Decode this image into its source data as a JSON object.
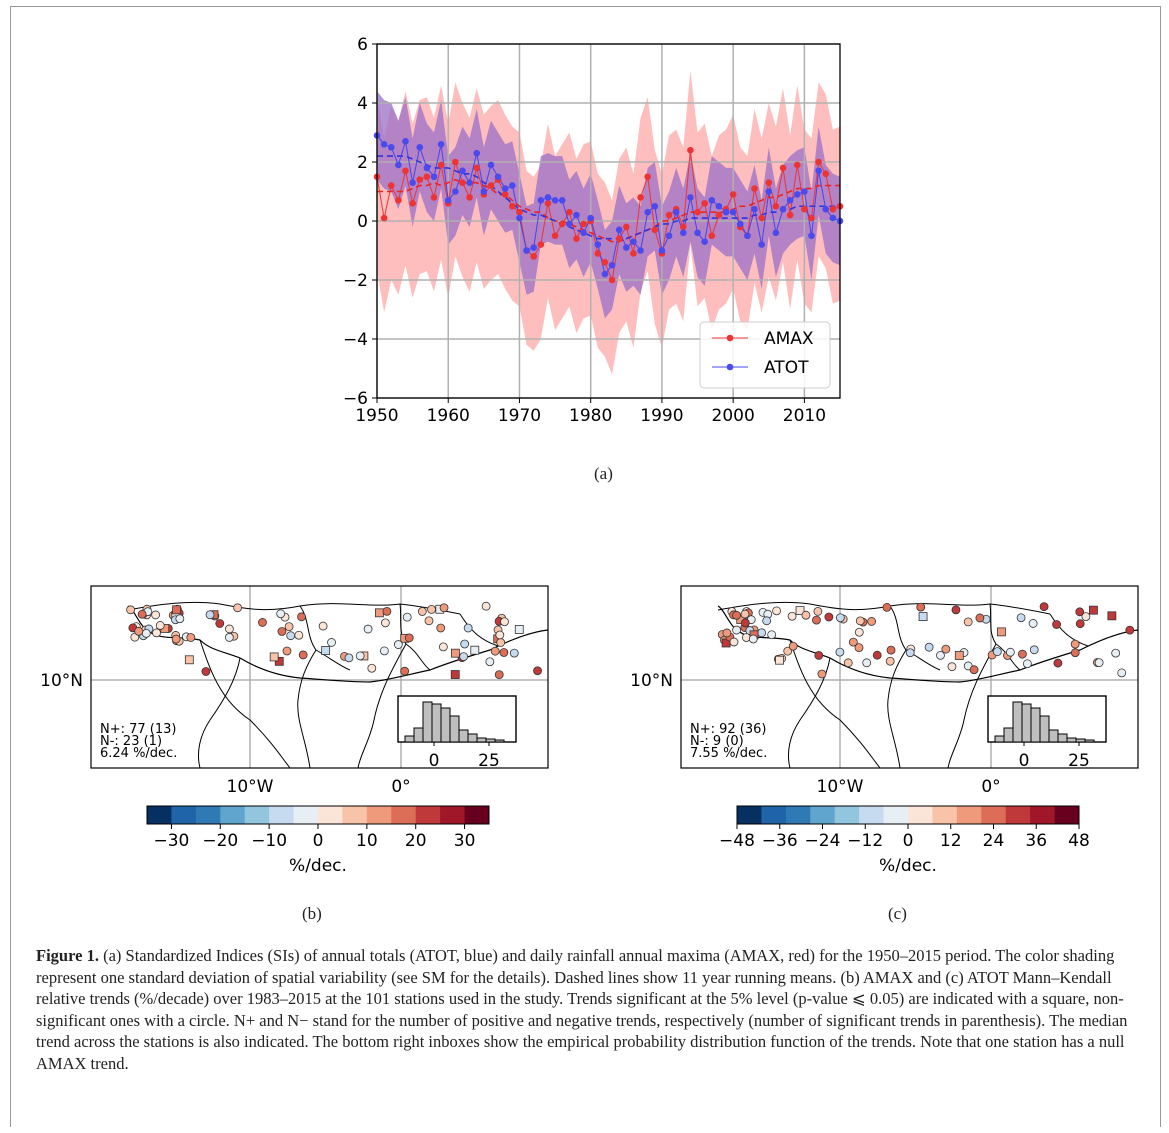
{
  "panels": {
    "a": "(a)",
    "b": "(b)",
    "c": "(c)"
  },
  "chart_data": [
    {
      "type": "line",
      "x": [
        1950,
        1951,
        1952,
        1953,
        1954,
        1955,
        1956,
        1957,
        1958,
        1959,
        1960,
        1961,
        1962,
        1963,
        1964,
        1965,
        1966,
        1967,
        1968,
        1969,
        1970,
        1971,
        1972,
        1973,
        1974,
        1975,
        1976,
        1977,
        1978,
        1979,
        1980,
        1981,
        1982,
        1983,
        1984,
        1985,
        1986,
        1987,
        1988,
        1989,
        1990,
        1991,
        1992,
        1993,
        1994,
        1995,
        1996,
        1997,
        1998,
        1999,
        2000,
        2001,
        2002,
        2003,
        2004,
        2005,
        2006,
        2007,
        2008,
        2009,
        2010,
        2011,
        2012,
        2013,
        2014,
        2015
      ],
      "series": [
        {
          "name": "AMAX",
          "color": "#ee3333",
          "values": [
            1.5,
            0.1,
            1.2,
            0.7,
            1.7,
            0.6,
            1.4,
            1.5,
            0.8,
            1.9,
            0.6,
            2.0,
            1.3,
            0.8,
            1.8,
            0.9,
            1.2,
            1.4,
            0.9,
            0.5,
            0.3,
            -1.0,
            -1.2,
            -0.8,
            0.6,
            -0.5,
            -0.1,
            0.3,
            -0.6,
            -0.1,
            0.0,
            -1.1,
            -1.4,
            -2.0,
            -0.6,
            -0.2,
            -1.1,
            0.8,
            1.5,
            -0.3,
            -1.1,
            0.2,
            0.4,
            -0.2,
            2.4,
            0.3,
            0.6,
            -0.5,
            0.2,
            0.4,
            0.9,
            -0.2,
            -0.5,
            1.1,
            0.1,
            1.3,
            0.5,
            1.8,
            0.2,
            1.9,
            0.4,
            0.1,
            2.0,
            1.6,
            0.4,
            0.5
          ]
        },
        {
          "name": "ATOT",
          "color": "#4444ee",
          "values": [
            2.9,
            2.6,
            2.5,
            1.9,
            2.7,
            1.3,
            2.5,
            1.8,
            1.5,
            2.6,
            0.7,
            1.0,
            1.7,
            1.3,
            2.3,
            1.0,
            1.9,
            1.5,
            1.1,
            1.2,
            0.1,
            -1.0,
            -0.9,
            0.7,
            0.8,
            0.7,
            0.7,
            -0.1,
            0.2,
            -0.4,
            0.1,
            -0.8,
            -1.8,
            -1.5,
            -0.3,
            -0.9,
            -0.7,
            -1.0,
            0.3,
            0.5,
            -1.0,
            -0.5,
            0.3,
            -0.4,
            0.8,
            -0.4,
            -0.7,
            0.7,
            0.5,
            0.3,
            0.3,
            -0.1,
            -0.5,
            0.4,
            -0.8,
            1.0,
            -0.4,
            0.4,
            0.7,
            0.9,
            1.0,
            -0.5,
            1.7,
            0.4,
            0.1,
            0.0
          ]
        },
        {
          "name": "AMAX running mean",
          "values": [
            1.0,
            1.0,
            1.0,
            1.0,
            1.0,
            1.1,
            1.2,
            1.2,
            1.3,
            1.2,
            1.3,
            1.4,
            1.3,
            1.3,
            1.3,
            1.2,
            1.1,
            0.9,
            0.9,
            0.7,
            0.5,
            0.4,
            0.3,
            0.3,
            0.1,
            0.0,
            0.0,
            -0.1,
            -0.2,
            -0.3,
            -0.4,
            -0.5,
            -0.6,
            -0.7,
            -0.7,
            -0.6,
            -0.5,
            -0.4,
            -0.3,
            -0.2,
            0.0,
            0.0,
            0.1,
            0.2,
            0.3,
            0.3,
            0.3,
            0.3,
            0.3,
            0.3,
            0.4,
            0.5,
            0.5,
            0.6,
            0.7,
            0.8,
            0.8,
            0.9,
            1.0,
            1.1,
            1.1,
            1.1,
            1.2,
            1.2,
            1.2,
            1.2
          ]
        },
        {
          "name": "ATOT running mean",
          "values": [
            2.2,
            2.2,
            2.2,
            2.2,
            2.2,
            2.1,
            2.0,
            1.9,
            1.8,
            1.8,
            1.8,
            1.7,
            1.6,
            1.6,
            1.5,
            1.3,
            1.2,
            1.0,
            0.8,
            0.6,
            0.4,
            0.3,
            0.2,
            0.2,
            0.1,
            0.0,
            -0.1,
            -0.2,
            -0.3,
            -0.4,
            -0.5,
            -0.6,
            -0.6,
            -0.6,
            -0.6,
            -0.6,
            -0.5,
            -0.4,
            -0.3,
            -0.2,
            -0.1,
            -0.1,
            0.0,
            0.0,
            0.1,
            0.1,
            0.1,
            0.1,
            0.1,
            0.1,
            0.1,
            0.1,
            0.1,
            0.2,
            0.2,
            0.3,
            0.3,
            0.4,
            0.4,
            0.5,
            0.5,
            0.5,
            0.5,
            0.5,
            0.5,
            0.5
          ]
        }
      ],
      "bands": [
        {
          "name": "AMAX band",
          "color": "#ffb3b3",
          "upper_offset": 2.7,
          "lower_offset": 3.2
        },
        {
          "name": "ATOT band",
          "color": "#9a6fc7",
          "upper_offset": 1.5,
          "lower_offset": 1.5
        }
      ],
      "xlim": [
        1950,
        2015
      ],
      "ylim": [
        -6,
        6
      ],
      "xticks": [
        "1950",
        "1960",
        "1970",
        "1980",
        "1990",
        "2000",
        "2010"
      ],
      "yticks": [
        "6",
        "4",
        "2",
        "0",
        "−2",
        "−4",
        "−6"
      ],
      "grid": true,
      "legend": {
        "position": "bottom-right",
        "entries": [
          "AMAX",
          "ATOT"
        ]
      }
    }
  ],
  "maps": [
    {
      "id": "b",
      "stats": [
        "N+: 77 (13)",
        "N-: 23 (1)",
        "6.24 %/dec."
      ],
      "lat_label": "10°N",
      "lon_labels": [
        "10°W",
        "0°"
      ],
      "hist_ticks": [
        "0",
        "25"
      ],
      "colorbar_ticks": [
        "−30",
        "−20",
        "−10",
        "0",
        "10",
        "20",
        "30"
      ],
      "colorbar_label": "%/dec."
    },
    {
      "id": "c",
      "stats": [
        "N+: 92 (36)",
        "N-: 9 (0)",
        "7.55 %/dec."
      ],
      "lat_label": "10°N",
      "lon_labels": [
        "10°W",
        "0°"
      ],
      "hist_ticks": [
        "0",
        "25"
      ],
      "colorbar_ticks": [
        "−48",
        "−36",
        "−24",
        "−12",
        "0",
        "12",
        "24",
        "36",
        "48"
      ],
      "colorbar_label": "%/dec."
    }
  ],
  "colorbar_colors": [
    "#053061",
    "#1f63a8",
    "#2f79b5",
    "#5fa5cd",
    "#92c5de",
    "#c6dbef",
    "#e7eff5",
    "#fbe5d8",
    "#f8c3a8",
    "#ef9a7a",
    "#dc6e57",
    "#c0393a",
    "#a0172a",
    "#67001f"
  ],
  "caption": {
    "label": "Figure 1.",
    "text": " (a) Standardized Indices (SIs) of annual totals (ATOT, blue) and daily rainfall annual maxima (AMAX, red) for the 1950–2015 period. The color shading represent one standard deviation of spatial variability (see SM for the details). Dashed lines show 11 year running means. (b) AMAX and (c) ATOT Mann–Kendall relative trends (%/decade) over 1983–2015 at the 101 stations used in the study. Trends significant at the 5% level (p-value ⩽ 0.05) are indicated with a square, non-significant ones with a circle. N+ and N− stand for the number of positive and negative trends, respectively (number of significant trends in parenthesis). The median trend across the stations is also indicated. The bottom right inboxes show the empirical probability distribution function of the trends. Note that one station has a null AMAX trend."
  }
}
